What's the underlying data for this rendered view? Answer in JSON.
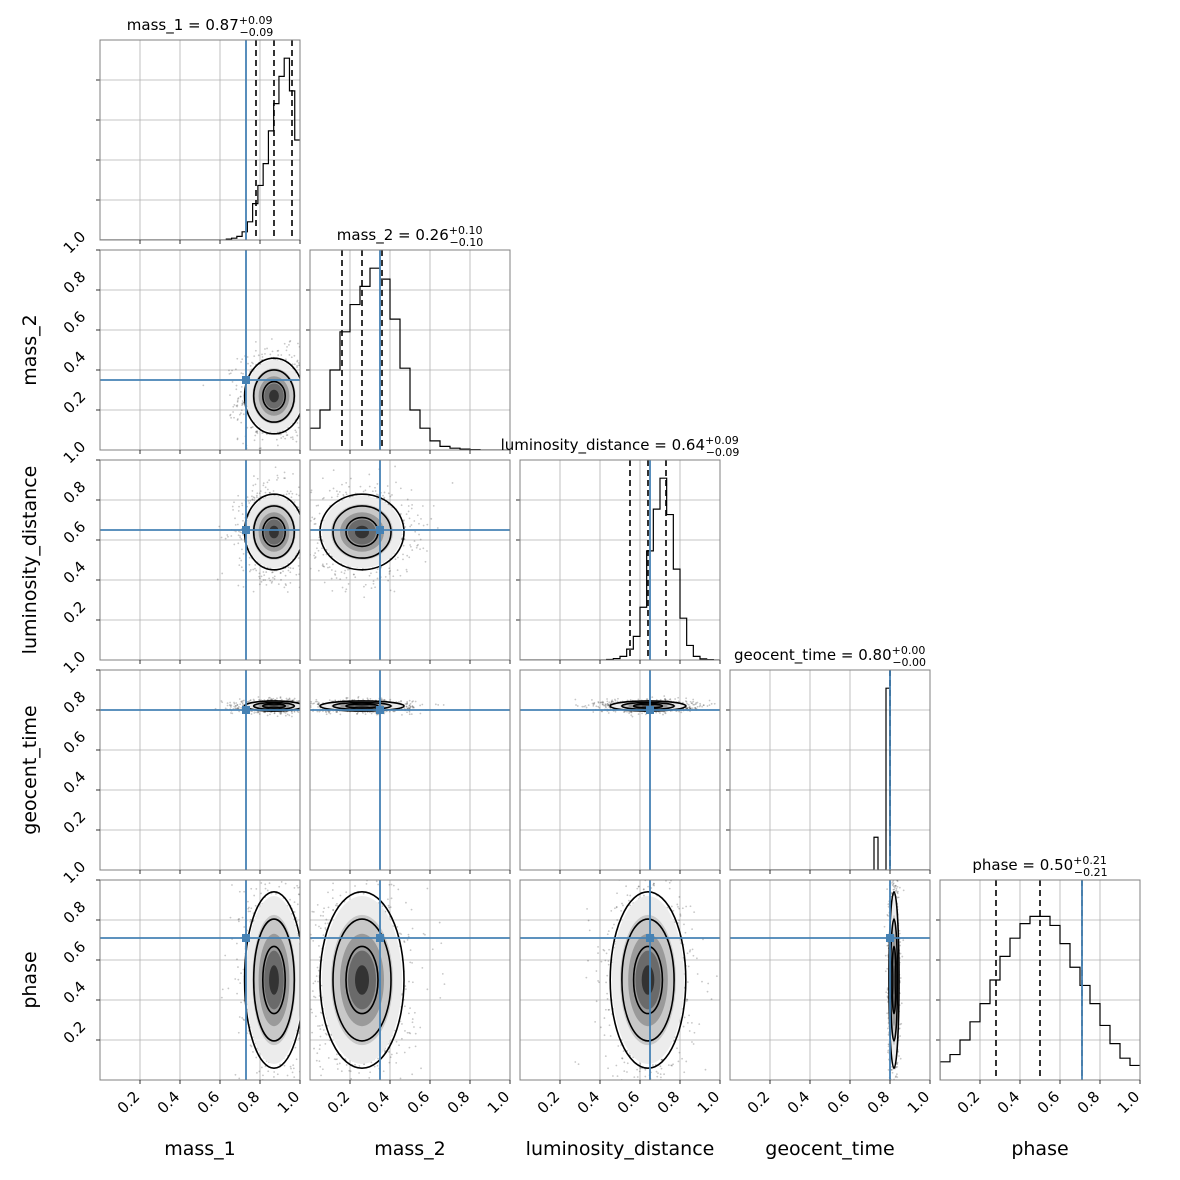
{
  "chart_data": {
    "type": "corner",
    "params": [
      "mass_1",
      "mass_2",
      "luminosity_distance",
      "geocent_time",
      "phase"
    ],
    "axis_range": [
      0,
      1
    ],
    "ticks": [
      0.2,
      0.4,
      0.6,
      0.8,
      1.0
    ],
    "tick_labels": [
      "0.2",
      "0.4",
      "0.6",
      "0.8",
      "1.0"
    ],
    "grid": true,
    "truth_color": "#4682b4",
    "contour_color": "#000000",
    "truths": [
      0.73,
      0.35,
      0.65,
      0.8,
      0.71
    ],
    "titles": [
      {
        "name": "mass_1",
        "median": "0.87",
        "plus": "+0.09",
        "minus": "−0.09"
      },
      {
        "name": "mass_2",
        "median": "0.26",
        "plus": "+0.10",
        "minus": "−0.10"
      },
      {
        "name": "luminosity_distance",
        "median": "0.64",
        "plus": "+0.09",
        "minus": "−0.09"
      },
      {
        "name": "geocent_time",
        "median": "0.80",
        "plus": "+0.00",
        "minus": "−0.00"
      },
      {
        "name": "phase",
        "median": "0.50",
        "plus": "+0.21",
        "minus": "−0.21"
      }
    ],
    "quantiles": [
      [
        0.78,
        0.87,
        0.96
      ],
      [
        0.16,
        0.26,
        0.36
      ],
      [
        0.55,
        0.64,
        0.73
      ],
      [
        0.8,
        0.8,
        0.8
      ],
      [
        0.28,
        0.5,
        0.71
      ]
    ],
    "histograms": [
      [
        0,
        0,
        0,
        0,
        0,
        0,
        0,
        0,
        0,
        0,
        0,
        0,
        0,
        0,
        0,
        0,
        0,
        0,
        0,
        0,
        0,
        0,
        0,
        0,
        0.005,
        0.01,
        0.02,
        0.045,
        0.1,
        0.2,
        0.3,
        0.42,
        0.6,
        0.75,
        0.9,
        1.0,
        0.82,
        0.55
      ],
      [
        0.12,
        0.22,
        0.44,
        0.65,
        0.8,
        0.9,
        1.0,
        0.94,
        0.72,
        0.45,
        0.22,
        0.12,
        0.05,
        0.02,
        0.01,
        0.005,
        0.002,
        0,
        0,
        0
      ],
      [
        0,
        0,
        0,
        0,
        0,
        0,
        0,
        0,
        0,
        0,
        0,
        0,
        0,
        0.003,
        0.008,
        0.02,
        0.06,
        0.13,
        0.29,
        0.6,
        0.83,
        1.0,
        0.8,
        0.5,
        0.23,
        0.08,
        0.02,
        0.006,
        0.002,
        0
      ],
      [
        0,
        0,
        0,
        0,
        0,
        0,
        0,
        0,
        0,
        0,
        0,
        0,
        0,
        0,
        0,
        0,
        0,
        0,
        0,
        0,
        0,
        0,
        0,
        0,
        0,
        0,
        0,
        0,
        0,
        0,
        0,
        0,
        0,
        0,
        0,
        0,
        0.18,
        0.0,
        0.0,
        1.0,
        0,
        0,
        0,
        0,
        0,
        0,
        0,
        0,
        0,
        0
      ],
      [
        0.1,
        0.14,
        0.22,
        0.32,
        0.42,
        0.55,
        0.68,
        0.78,
        0.86,
        0.9,
        0.9,
        0.85,
        0.75,
        0.62,
        0.52,
        0.42,
        0.3,
        0.2,
        0.12,
        0.08
      ]
    ],
    "blobs": [
      [],
      [
        {
          "cx": 0.87,
          "cy": 0.27,
          "sx": 0.07,
          "sy": 0.09
        }
      ],
      [
        {
          "cx": 0.87,
          "cy": 0.64,
          "sx": 0.07,
          "sy": 0.09
        },
        {
          "cx": 0.26,
          "cy": 0.64,
          "sx": 0.1,
          "sy": 0.09
        }
      ],
      [
        {
          "cx": 0.87,
          "cy": 0.82,
          "sx": 0.07,
          "sy": 0.012
        },
        {
          "cx": 0.26,
          "cy": 0.82,
          "sx": 0.1,
          "sy": 0.012
        },
        {
          "cx": 0.64,
          "cy": 0.82,
          "sx": 0.09,
          "sy": 0.012
        }
      ],
      [
        {
          "cx": 0.87,
          "cy": 0.5,
          "sx": 0.07,
          "sy": 0.21
        },
        {
          "cx": 0.26,
          "cy": 0.5,
          "sx": 0.1,
          "sy": 0.21
        },
        {
          "cx": 0.64,
          "cy": 0.5,
          "sx": 0.09,
          "sy": 0.21
        },
        {
          "cx": 0.82,
          "cy": 0.5,
          "sx": 0.012,
          "sy": 0.21
        }
      ]
    ]
  }
}
